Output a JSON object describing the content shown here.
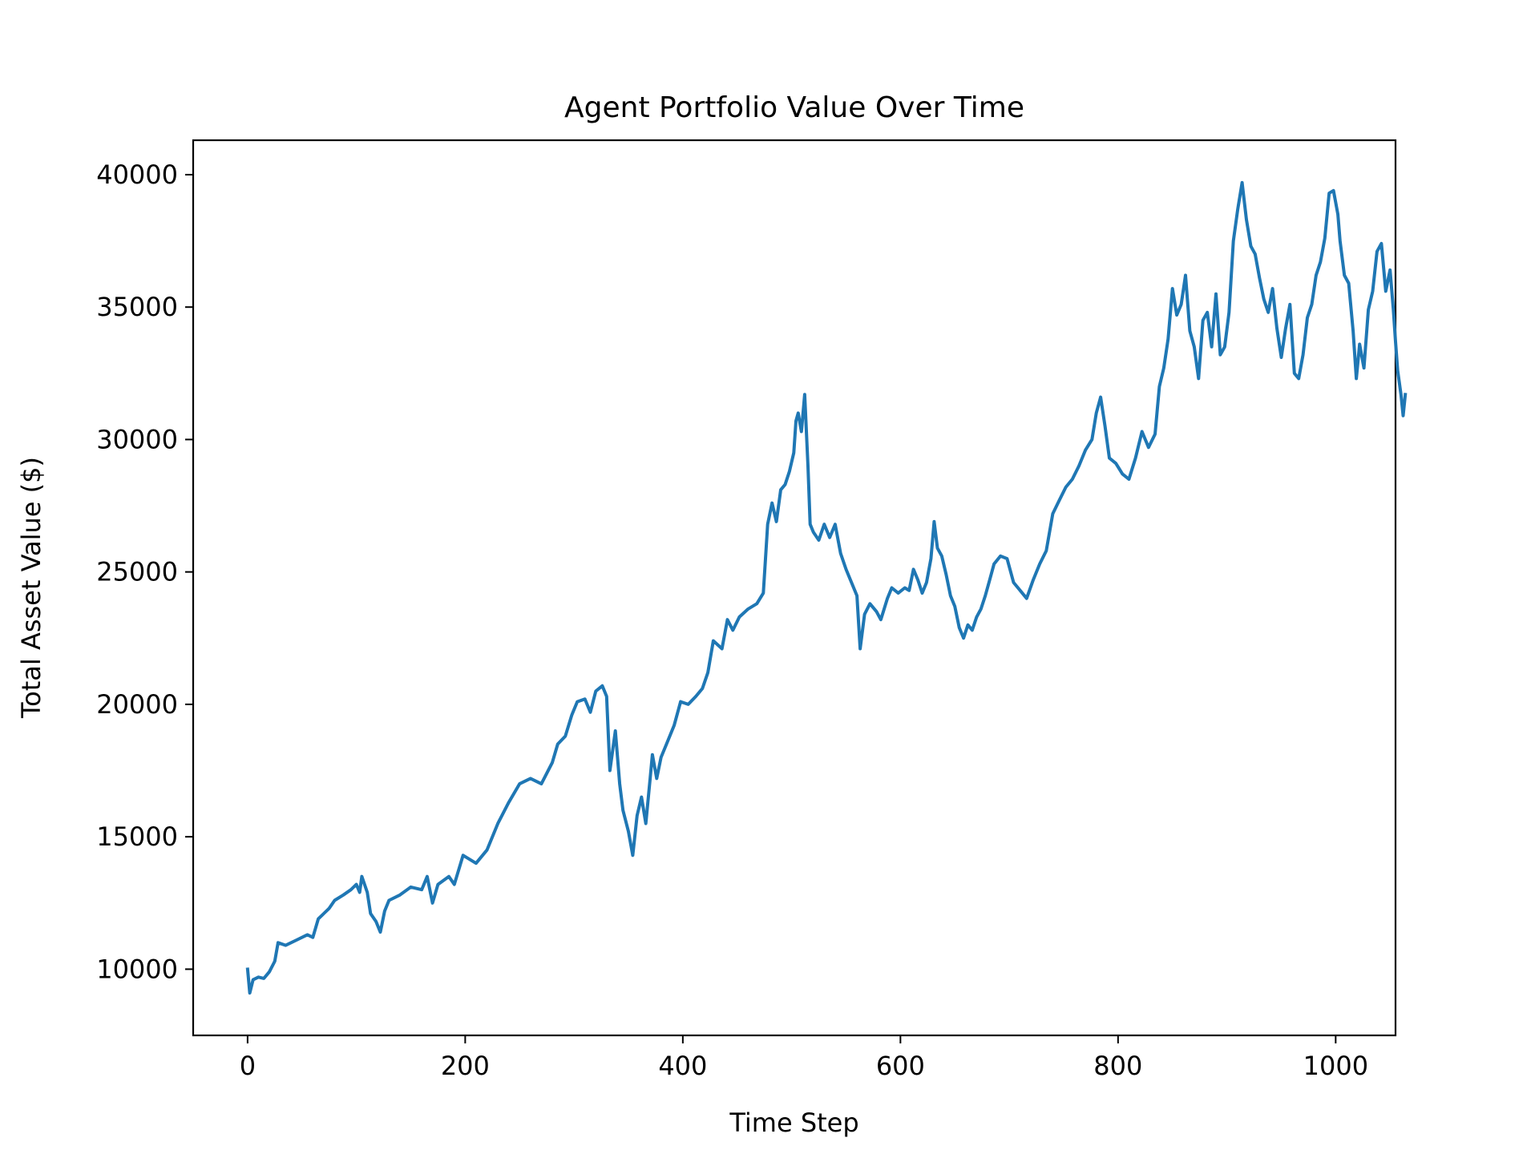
{
  "chart_data": {
    "type": "line",
    "title": "Agent Portfolio Value Over Time",
    "xlabel": "Time Step",
    "ylabel": "Total Asset Value ($)",
    "xlim": [
      -50,
      1055
    ],
    "ylim": [
      7500,
      41300
    ],
    "xticks": [
      0,
      200,
      400,
      600,
      800,
      1000
    ],
    "yticks": [
      10000,
      15000,
      20000,
      25000,
      30000,
      35000,
      40000
    ],
    "xtick_labels": [
      "0",
      "200",
      "400",
      "600",
      "800",
      "1000"
    ],
    "ytick_labels": [
      "10000",
      "15000",
      "20000",
      "25000",
      "30000",
      "35000",
      "40000"
    ],
    "grid": false,
    "series": [
      {
        "color": "#1f77b4",
        "points": [
          [
            0,
            10000
          ],
          [
            2,
            9100
          ],
          [
            5,
            9600
          ],
          [
            10,
            9700
          ],
          [
            15,
            9650
          ],
          [
            20,
            9900
          ],
          [
            25,
            10300
          ],
          [
            28,
            11000
          ],
          [
            35,
            10900
          ],
          [
            45,
            11100
          ],
          [
            55,
            11300
          ],
          [
            60,
            11200
          ],
          [
            65,
            11900
          ],
          [
            70,
            12100
          ],
          [
            75,
            12300
          ],
          [
            80,
            12600
          ],
          [
            88,
            12800
          ],
          [
            95,
            13000
          ],
          [
            100,
            13200
          ],
          [
            103,
            12900
          ],
          [
            105,
            13500
          ],
          [
            110,
            12900
          ],
          [
            113,
            12100
          ],
          [
            118,
            11800
          ],
          [
            122,
            11400
          ],
          [
            126,
            12200
          ],
          [
            130,
            12600
          ],
          [
            140,
            12800
          ],
          [
            150,
            13100
          ],
          [
            160,
            13000
          ],
          [
            165,
            13500
          ],
          [
            170,
            12500
          ],
          [
            175,
            13200
          ],
          [
            185,
            13500
          ],
          [
            190,
            13200
          ],
          [
            198,
            14300
          ],
          [
            210,
            14000
          ],
          [
            220,
            14500
          ],
          [
            230,
            15500
          ],
          [
            240,
            16300
          ],
          [
            250,
            17000
          ],
          [
            260,
            17200
          ],
          [
            270,
            17000
          ],
          [
            280,
            17800
          ],
          [
            285,
            18500
          ],
          [
            292,
            18800
          ],
          [
            298,
            19600
          ],
          [
            303,
            20100
          ],
          [
            310,
            20200
          ],
          [
            315,
            19700
          ],
          [
            320,
            20500
          ],
          [
            326,
            20700
          ],
          [
            330,
            20300
          ],
          [
            333,
            17500
          ],
          [
            338,
            19000
          ],
          [
            342,
            17000
          ],
          [
            345,
            16000
          ],
          [
            350,
            15200
          ],
          [
            354,
            14300
          ],
          [
            358,
            15800
          ],
          [
            362,
            16500
          ],
          [
            366,
            15500
          ],
          [
            370,
            17200
          ],
          [
            372,
            18100
          ],
          [
            376,
            17200
          ],
          [
            380,
            18000
          ],
          [
            385,
            18500
          ],
          [
            392,
            19200
          ],
          [
            398,
            20100
          ],
          [
            405,
            20000
          ],
          [
            412,
            20300
          ],
          [
            418,
            20600
          ],
          [
            423,
            21200
          ],
          [
            428,
            22400
          ],
          [
            436,
            22100
          ],
          [
            441,
            23200
          ],
          [
            446,
            22800
          ],
          [
            452,
            23300
          ],
          [
            460,
            23600
          ],
          [
            468,
            23800
          ],
          [
            474,
            24200
          ],
          [
            478,
            26800
          ],
          [
            482,
            27600
          ],
          [
            486,
            26900
          ],
          [
            490,
            28100
          ],
          [
            494,
            28300
          ],
          [
            498,
            28800
          ],
          [
            502,
            29500
          ],
          [
            504,
            30700
          ],
          [
            506,
            31000
          ],
          [
            509,
            30300
          ],
          [
            512,
            31700
          ],
          [
            515,
            29000
          ],
          [
            517,
            26800
          ],
          [
            520,
            26500
          ],
          [
            525,
            26200
          ],
          [
            530,
            26800
          ],
          [
            535,
            26300
          ],
          [
            540,
            26800
          ],
          [
            545,
            25700
          ],
          [
            550,
            25100
          ],
          [
            555,
            24600
          ],
          [
            560,
            24100
          ],
          [
            563,
            22100
          ],
          [
            567,
            23400
          ],
          [
            572,
            23800
          ],
          [
            578,
            23500
          ],
          [
            582,
            23200
          ],
          [
            588,
            24000
          ],
          [
            592,
            24400
          ],
          [
            598,
            24200
          ],
          [
            604,
            24400
          ],
          [
            608,
            24300
          ],
          [
            612,
            25100
          ],
          [
            616,
            24700
          ],
          [
            620,
            24200
          ],
          [
            624,
            24600
          ],
          [
            628,
            25500
          ],
          [
            631,
            26900
          ],
          [
            634,
            25900
          ],
          [
            638,
            25600
          ],
          [
            642,
            24900
          ],
          [
            646,
            24100
          ],
          [
            650,
            23700
          ],
          [
            654,
            22900
          ],
          [
            658,
            22500
          ],
          [
            662,
            23000
          ],
          [
            666,
            22800
          ],
          [
            670,
            23300
          ],
          [
            674,
            23600
          ],
          [
            678,
            24100
          ],
          [
            682,
            24700
          ],
          [
            686,
            25300
          ],
          [
            692,
            25600
          ],
          [
            698,
            25500
          ],
          [
            704,
            24600
          ],
          [
            710,
            24300
          ],
          [
            716,
            24000
          ],
          [
            722,
            24700
          ],
          [
            728,
            25300
          ],
          [
            734,
            25800
          ],
          [
            740,
            27200
          ],
          [
            746,
            27700
          ],
          [
            752,
            28200
          ],
          [
            758,
            28500
          ],
          [
            764,
            29000
          ],
          [
            770,
            29600
          ],
          [
            776,
            30000
          ],
          [
            780,
            31000
          ],
          [
            784,
            31600
          ],
          [
            788,
            30500
          ],
          [
            792,
            29300
          ],
          [
            798,
            29100
          ],
          [
            804,
            28700
          ],
          [
            810,
            28500
          ],
          [
            816,
            29300
          ],
          [
            822,
            30300
          ],
          [
            828,
            29700
          ],
          [
            834,
            30200
          ],
          [
            838,
            32000
          ],
          [
            842,
            32700
          ],
          [
            846,
            33800
          ],
          [
            850,
            35700
          ],
          [
            854,
            34700
          ],
          [
            858,
            35100
          ],
          [
            862,
            36200
          ],
          [
            866,
            34100
          ],
          [
            870,
            33500
          ],
          [
            874,
            32300
          ],
          [
            878,
            34500
          ],
          [
            882,
            34800
          ],
          [
            886,
            33500
          ],
          [
            890,
            35500
          ],
          [
            894,
            33200
          ],
          [
            898,
            33500
          ],
          [
            902,
            34800
          ],
          [
            906,
            37500
          ],
          [
            910,
            38700
          ],
          [
            914,
            39700
          ],
          [
            918,
            38300
          ],
          [
            922,
            37300
          ],
          [
            926,
            37000
          ],
          [
            930,
            36100
          ],
          [
            934,
            35300
          ],
          [
            938,
            34800
          ],
          [
            942,
            35700
          ],
          [
            946,
            34200
          ],
          [
            950,
            33100
          ],
          [
            954,
            34200
          ],
          [
            958,
            35100
          ],
          [
            962,
            32500
          ],
          [
            966,
            32300
          ],
          [
            970,
            33200
          ],
          [
            974,
            34600
          ],
          [
            978,
            35100
          ],
          [
            982,
            36200
          ],
          [
            986,
            36700
          ],
          [
            990,
            37600
          ],
          [
            994,
            39300
          ],
          [
            998,
            39400
          ],
          [
            1002,
            38500
          ],
          [
            1004,
            37500
          ],
          [
            1008,
            36200
          ],
          [
            1012,
            35900
          ],
          [
            1016,
            34100
          ],
          [
            1019,
            32300
          ],
          [
            1022,
            33600
          ],
          [
            1026,
            32700
          ],
          [
            1030,
            34900
          ],
          [
            1034,
            35600
          ],
          [
            1038,
            37100
          ],
          [
            1042,
            37400
          ],
          [
            1046,
            35600
          ],
          [
            1050,
            36400
          ],
          [
            1053,
            34900
          ],
          [
            1055,
            33700
          ],
          [
            1057,
            32600
          ],
          [
            1060,
            31700
          ],
          [
            1062,
            30900
          ],
          [
            1064,
            31700
          ]
        ]
      }
    ]
  }
}
